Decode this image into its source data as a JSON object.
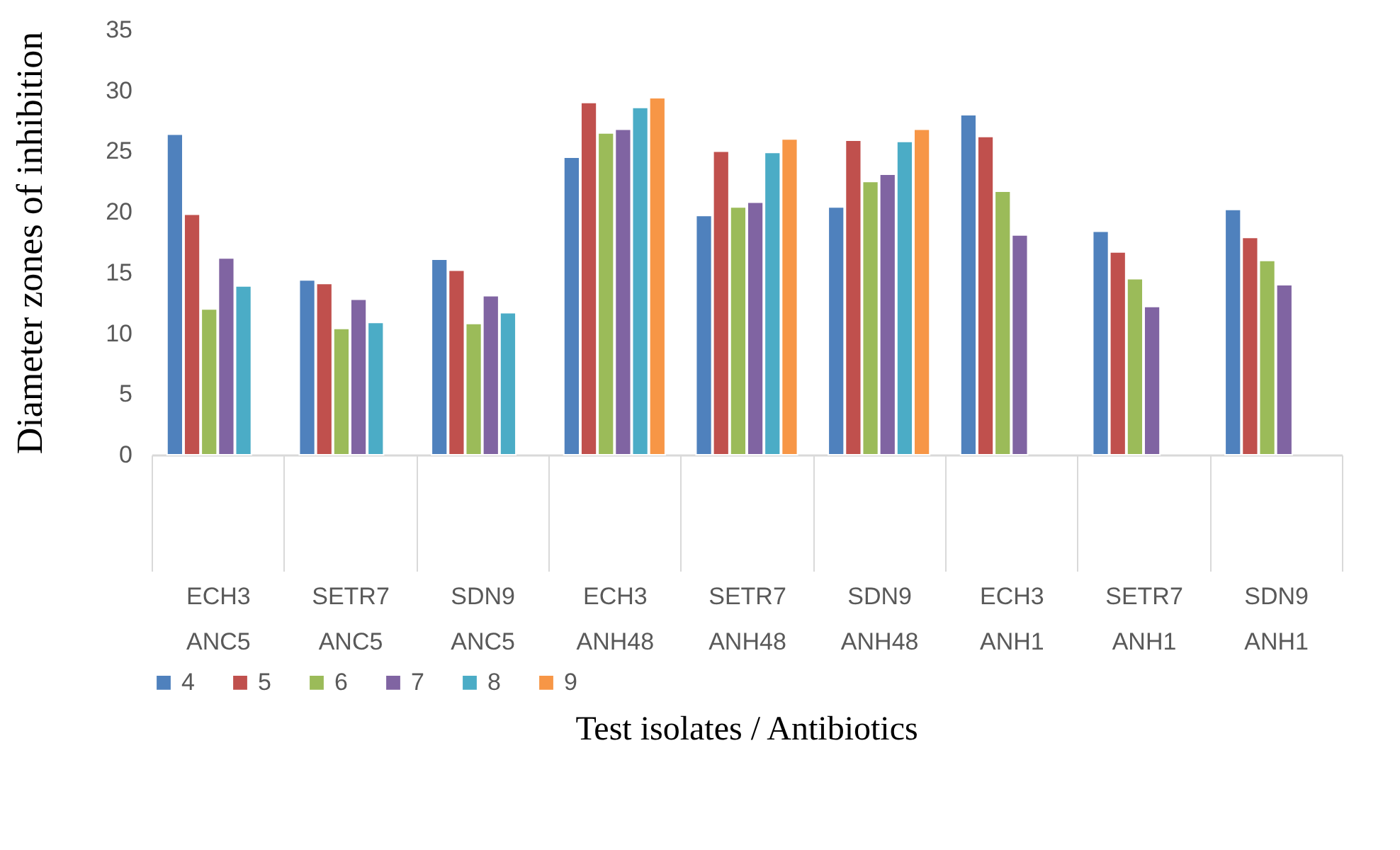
{
  "chart_data": {
    "type": "bar",
    "xlabel": "Test isolates / Antibiotics",
    "ylabel": "Diameter zones of inhibition",
    "categories": [
      "ECH3\nANC5",
      "SETR7\nANC5",
      "SDN9\nANC5",
      "ECH3\nANH48",
      "SETR7\nANH48",
      "SDN9\nANH48",
      "ECH3\nANH1",
      "SETR7\nANH1",
      "SDN9\nANH1"
    ],
    "ylim": [
      0,
      35
    ],
    "yticks": [
      0,
      5,
      10,
      15,
      20,
      25,
      30,
      35
    ],
    "grid": false,
    "legend": "bottom",
    "series": [
      {
        "name": "4",
        "color": "#4f81bd",
        "values": [
          26.4,
          14.4,
          16.1,
          24.5,
          19.7,
          20.4,
          28.0,
          18.4,
          20.2
        ]
      },
      {
        "name": "5",
        "color": "#c0504d",
        "values": [
          19.8,
          14.1,
          15.2,
          29.0,
          25.0,
          25.9,
          26.2,
          16.7,
          17.9
        ]
      },
      {
        "name": "6",
        "color": "#9bbb59",
        "values": [
          12.0,
          10.4,
          10.8,
          26.5,
          20.4,
          22.5,
          21.7,
          14.5,
          16.0
        ]
      },
      {
        "name": "7",
        "color": "#8064a2",
        "values": [
          16.2,
          12.8,
          13.1,
          26.8,
          20.8,
          23.1,
          18.1,
          12.2,
          14.0
        ]
      },
      {
        "name": "8",
        "color": "#4bacc6",
        "values": [
          13.9,
          10.9,
          11.7,
          28.6,
          24.9,
          25.8,
          null,
          null,
          null
        ]
      },
      {
        "name": "9",
        "color": "#f79646",
        "values": [
          null,
          null,
          null,
          29.4,
          26.0,
          26.8,
          null,
          null,
          null
        ]
      }
    ]
  }
}
